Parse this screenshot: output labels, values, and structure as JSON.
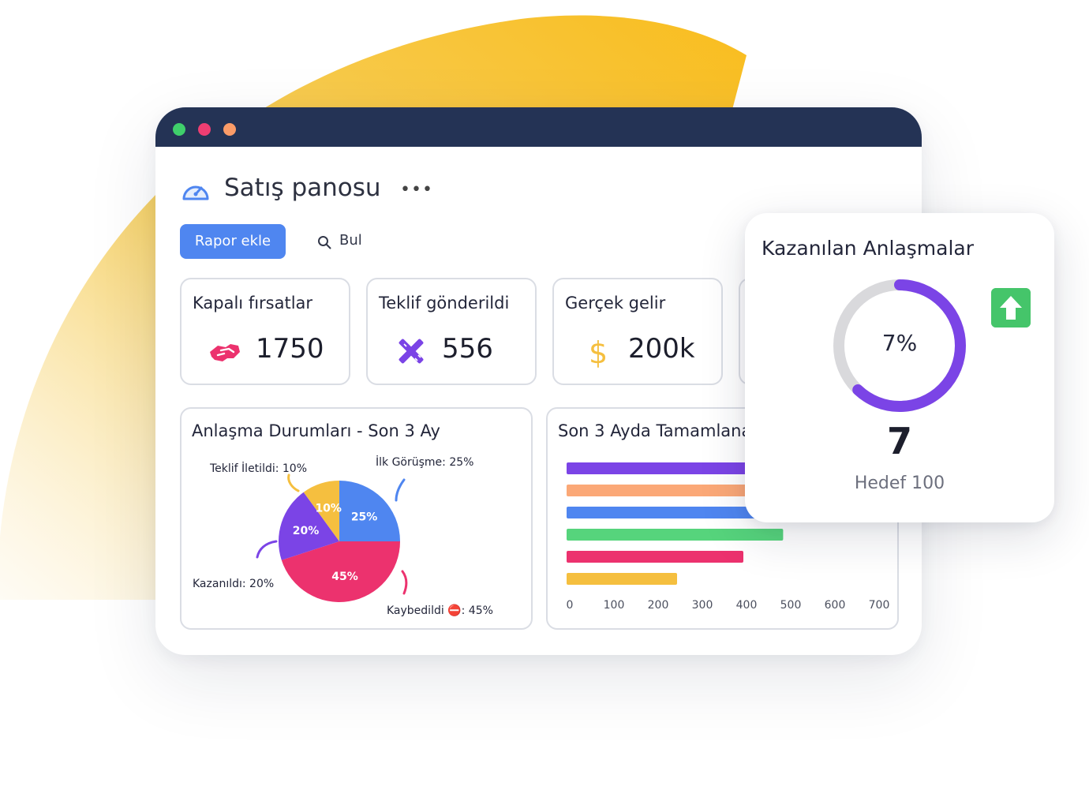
{
  "window": {
    "title": "Satış panosu",
    "add_report_label": "Rapor ekle",
    "search_label": "Bul"
  },
  "cards": [
    {
      "title": "Kapalı fırsatlar",
      "value": "1750",
      "icon": "handshake-icon"
    },
    {
      "title": "Teklif gönderildi",
      "value": "556",
      "icon": "tools-icon"
    },
    {
      "title": "Gerçek gelir",
      "value": "200k",
      "icon": "dollar-icon"
    }
  ],
  "pie_panel": {
    "title": "Anlaşma Durumları - Son 3 Ay",
    "labels": {
      "teklif": "Teklif İletildi: 10%",
      "ilk": "İlk Görüşme: 25%",
      "kazanildi": "Kazanıldı: 20%",
      "kaybedildi": "Kaybedildi ⛔: 45%"
    }
  },
  "bar_panel": {
    "title": "Son 3 Ayda Tamamlanan"
  },
  "popup": {
    "title": "Kazanılan Anlaşmalar",
    "percent": "7%",
    "value": "7",
    "target": "Hedef 100",
    "progress": 0.07
  },
  "chart_data": [
    {
      "type": "pie",
      "title": "Anlaşma Durumları - Son 3 Ay",
      "slices": [
        {
          "label": "İlk Görüşme",
          "value": 25,
          "color": "#4f86f0"
        },
        {
          "label": "Kaybedildi ⛔",
          "value": 45,
          "color": "#ec326e"
        },
        {
          "label": "Kazanıldı",
          "value": 20,
          "color": "#7b44e6"
        },
        {
          "label": "Teklif İletildi",
          "value": 10,
          "color": "#f5bf3f"
        }
      ]
    },
    {
      "type": "bar",
      "orientation": "horizontal",
      "title": "Son 3 Ayda Tamamlanan",
      "values": [
        630,
        640,
        660,
        490,
        400,
        250
      ],
      "colors": [
        "#7b44e6",
        "#fba877",
        "#4f86f0",
        "#56d47c",
        "#ec326e",
        "#f5bf3f"
      ],
      "xlim": [
        0,
        700
      ],
      "xticks": [
        0,
        100,
        200,
        300,
        400,
        500,
        600,
        700
      ]
    }
  ],
  "colors": {
    "titlebar": "#243355",
    "primary": "#4f86f0",
    "accent_purple": "#7b44e6",
    "accent_pink": "#ec326e",
    "accent_yellow": "#f5bf3f",
    "success": "#45c56a"
  }
}
